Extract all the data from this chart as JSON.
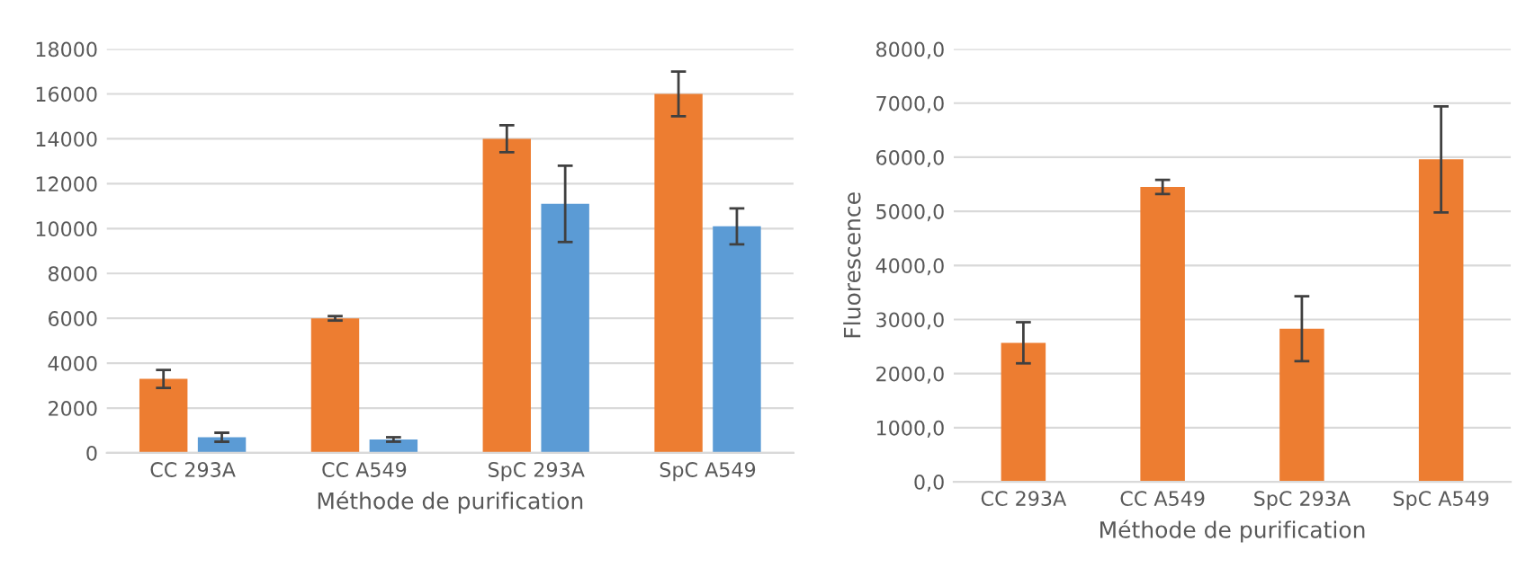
{
  "chart_data": [
    {
      "type": "bar",
      "xlabel": "Méthode de purification",
      "categories": [
        "CC 293A",
        "CC A549",
        "SpC 293A",
        "SpC A549"
      ],
      "series": [
        {
          "color": "#ed7d31",
          "values": [
            3300,
            6000,
            14000,
            16000
          ],
          "errors": [
            400,
            100,
            600,
            1000
          ]
        },
        {
          "color": "#5b9bd5",
          "values": [
            700,
            600,
            11100,
            10100
          ],
          "errors": [
            200,
            100,
            1700,
            800
          ]
        }
      ],
      "ylim": [
        0,
        18000
      ],
      "yticks": [
        0,
        2000,
        4000,
        6000,
        8000,
        10000,
        12000,
        14000,
        16000,
        18000
      ],
      "grid": "y"
    },
    {
      "type": "bar",
      "xlabel": "Méthode de purification",
      "ylabel": "Fluorescence",
      "categories": [
        "CC 293A",
        "CC A549",
        "SpC 293A",
        "SpC A549"
      ],
      "series": [
        {
          "color": "#ed7d31",
          "values": [
            2570,
            5450,
            2830,
            5960
          ],
          "errors": [
            380,
            130,
            600,
            980
          ]
        }
      ],
      "ylim": [
        0,
        8000
      ],
      "yticks": [
        {
          "value": 0,
          "label": "0,0"
        },
        {
          "value": 1000,
          "label": "1000,0"
        },
        {
          "value": 2000,
          "label": "2000,0"
        },
        {
          "value": 3000,
          "label": "3000,0"
        },
        {
          "value": 4000,
          "label": "4000,0"
        },
        {
          "value": 5000,
          "label": "5000,0"
        },
        {
          "value": 6000,
          "label": "6000,0"
        },
        {
          "value": 7000,
          "label": "7000,0"
        },
        {
          "value": 8000,
          "label": "8000,0"
        }
      ],
      "grid": "y"
    }
  ]
}
